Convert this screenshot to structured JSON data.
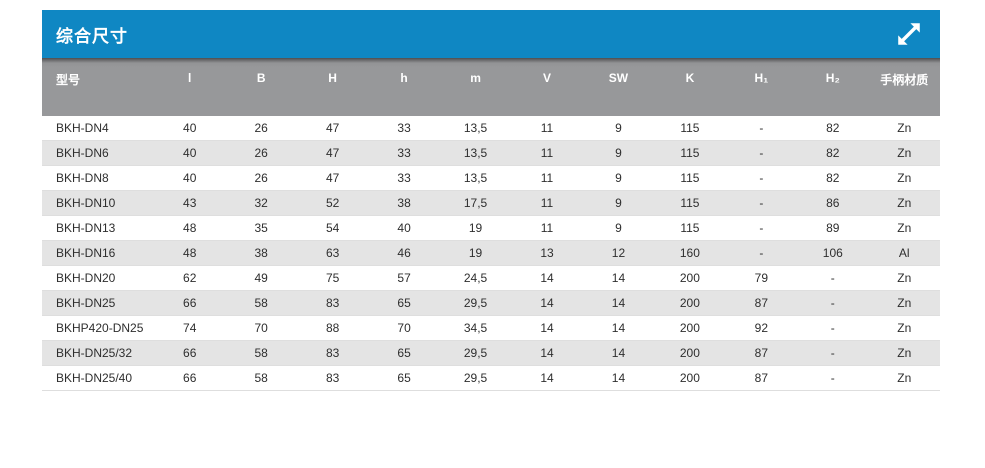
{
  "panel": {
    "title": "综合尺寸",
    "colors": {
      "header_blue": "#0f87c3",
      "column_header_gray": "#97989a",
      "row_alt_gray": "#e4e4e4",
      "row_white": "#ffffff",
      "text_dark": "#2e2e2e",
      "text_white": "#ffffff"
    },
    "icons": {
      "expand": "diagonal-double-arrow"
    }
  },
  "table": {
    "columns": [
      "型号",
      "l",
      "B",
      "H",
      "h",
      "m",
      "V",
      "SW",
      "K",
      "H₁",
      "H₂",
      "手柄材质"
    ],
    "rows": [
      [
        "BKH-DN4",
        "40",
        "26",
        "47",
        "33",
        "13,5",
        "11",
        "9",
        "115",
        "-",
        "82",
        "Zn"
      ],
      [
        "BKH-DN6",
        "40",
        "26",
        "47",
        "33",
        "13,5",
        "11",
        "9",
        "115",
        "-",
        "82",
        "Zn"
      ],
      [
        "BKH-DN8",
        "40",
        "26",
        "47",
        "33",
        "13,5",
        "11",
        "9",
        "115",
        "-",
        "82",
        "Zn"
      ],
      [
        "BKH-DN10",
        "43",
        "32",
        "52",
        "38",
        "17,5",
        "11",
        "9",
        "115",
        "-",
        "86",
        "Zn"
      ],
      [
        "BKH-DN13",
        "48",
        "35",
        "54",
        "40",
        "19",
        "11",
        "9",
        "115",
        "-",
        "89",
        "Zn"
      ],
      [
        "BKH-DN16",
        "48",
        "38",
        "63",
        "46",
        "19",
        "13",
        "12",
        "160",
        "-",
        "106",
        "Al"
      ],
      [
        "BKH-DN20",
        "62",
        "49",
        "75",
        "57",
        "24,5",
        "14",
        "14",
        "200",
        "79",
        "-",
        "Zn"
      ],
      [
        "BKH-DN25",
        "66",
        "58",
        "83",
        "65",
        "29,5",
        "14",
        "14",
        "200",
        "87",
        "-",
        "Zn"
      ],
      [
        "BKHP420-DN25",
        "74",
        "70",
        "88",
        "70",
        "34,5",
        "14",
        "14",
        "200",
        "92",
        "-",
        "Zn"
      ],
      [
        "BKH-DN25/32",
        "66",
        "58",
        "83",
        "65",
        "29,5",
        "14",
        "14",
        "200",
        "87",
        "-",
        "Zn"
      ],
      [
        "BKH-DN25/40",
        "66",
        "58",
        "83",
        "65",
        "29,5",
        "14",
        "14",
        "200",
        "87",
        "-",
        "Zn"
      ]
    ]
  }
}
